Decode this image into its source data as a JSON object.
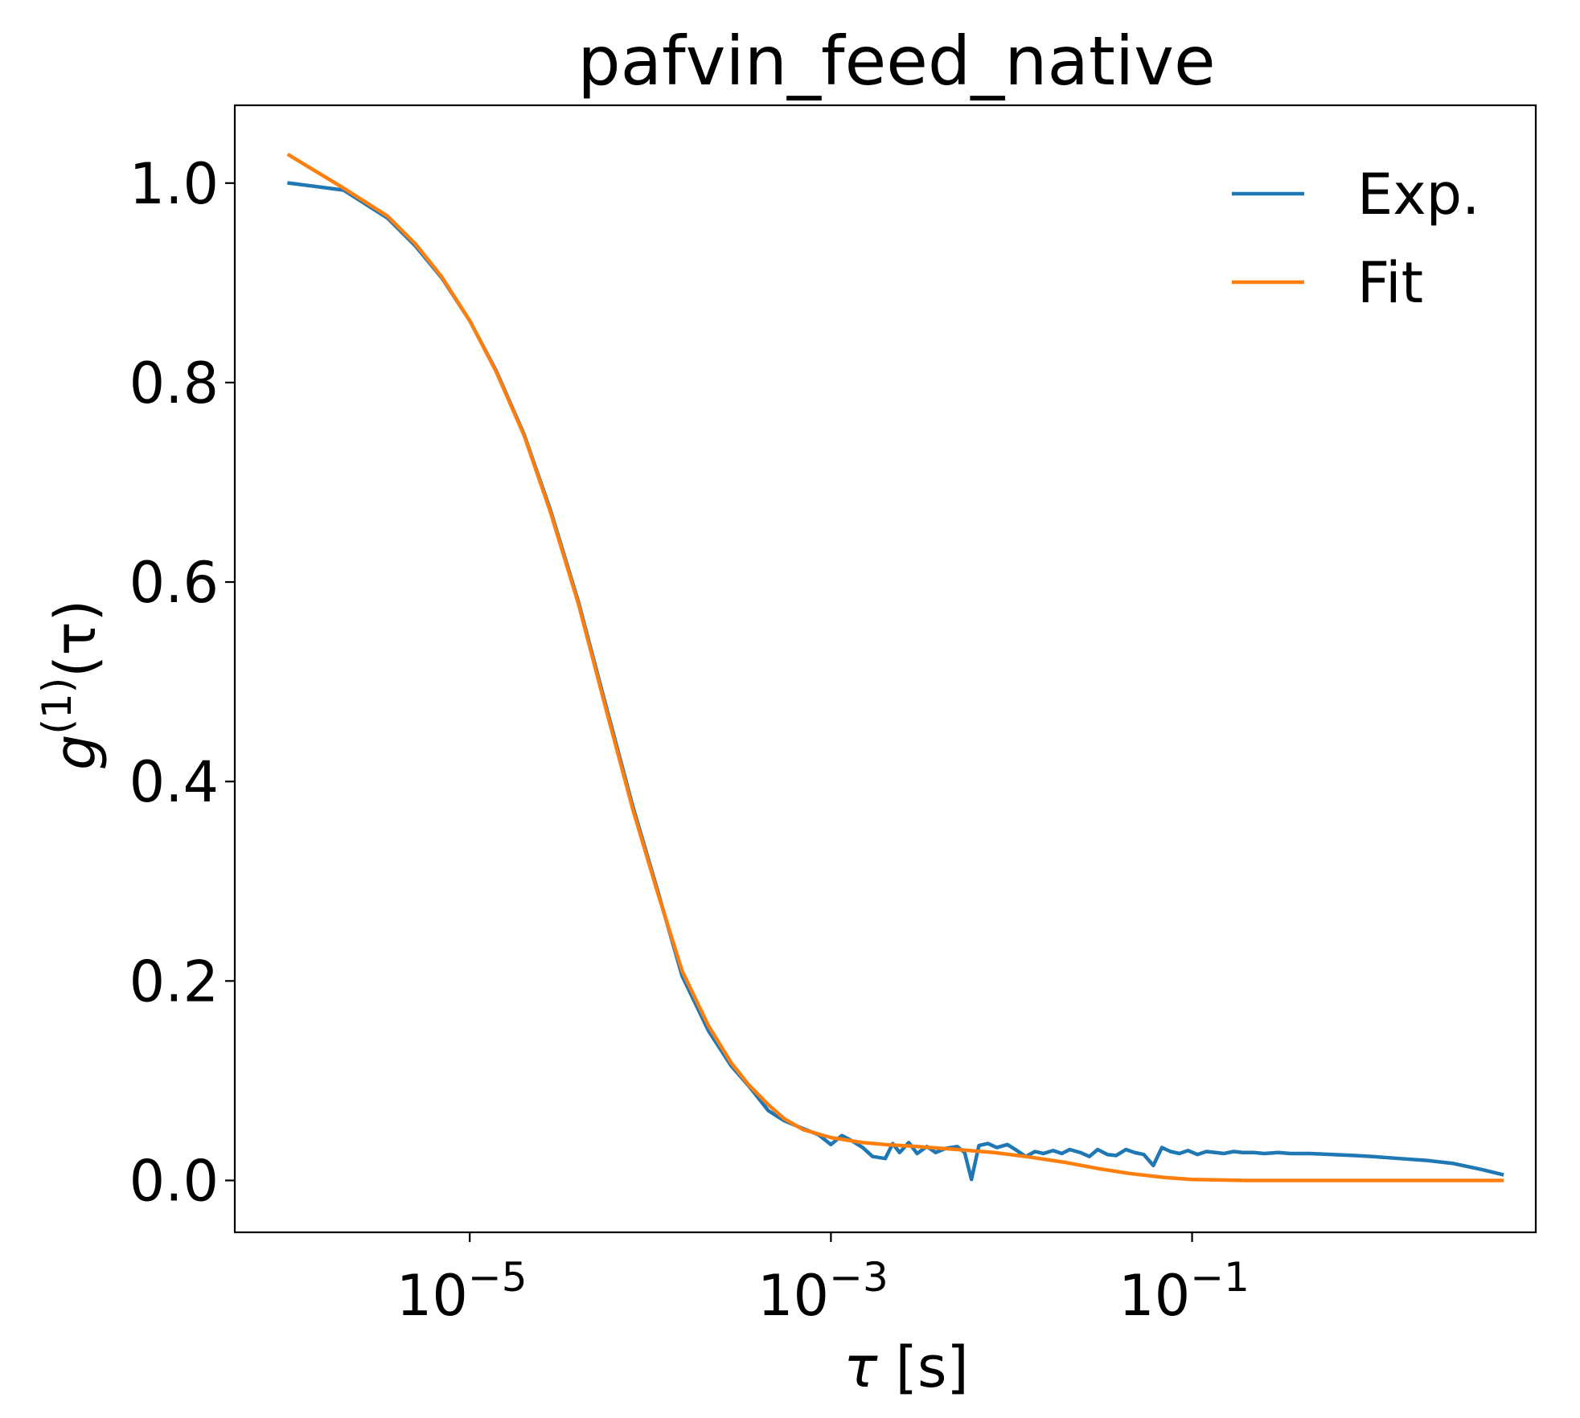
{
  "chart_data": {
    "type": "line",
    "title": "pafvin_feed_native",
    "xlabel": "τ [s]",
    "ylabel": "g(1)(τ)",
    "ylabel_parts": {
      "base": "g",
      "sup": "(1)",
      "arg": "(τ)"
    },
    "xlabel_parts": {
      "sym": "τ",
      "unit": " [s]"
    },
    "x_scale": "log",
    "xlim": [
      5e-07,
      8.0
    ],
    "ylim": [
      -0.052,
      1.078
    ],
    "x_ticks": [
      {
        "value": 1e-05,
        "base": "10",
        "exp": "−5"
      },
      {
        "value": 0.001,
        "base": "10",
        "exp": "−3"
      },
      {
        "value": 0.1,
        "base": "10",
        "exp": "−1"
      }
    ],
    "y_ticks": [
      {
        "value": 0.0,
        "label": "0.0"
      },
      {
        "value": 0.2,
        "label": "0.2"
      },
      {
        "value": 0.4,
        "label": "0.4"
      },
      {
        "value": 0.6,
        "label": "0.6"
      },
      {
        "value": 0.8,
        "label": "0.8"
      },
      {
        "value": 1.0,
        "label": "1.0"
      }
    ],
    "grid": false,
    "legend": {
      "placement": "upper right",
      "frame": false
    },
    "series": [
      {
        "name": "Exp.",
        "color": "#1f77b4",
        "points": [
          [
            1e-06,
            1.0
          ],
          [
            2e-06,
            0.993
          ],
          [
            3.5e-06,
            0.965
          ],
          [
            5e-06,
            0.937
          ],
          [
            7e-06,
            0.905
          ],
          [
            1e-05,
            0.862
          ],
          [
            1.4e-05,
            0.812
          ],
          [
            2e-05,
            0.748
          ],
          [
            2.8e-05,
            0.672
          ],
          [
            4e-05,
            0.58
          ],
          [
            5.6e-05,
            0.48
          ],
          [
            8e-05,
            0.375
          ],
          [
            0.00011,
            0.29
          ],
          [
            0.00015,
            0.205
          ],
          [
            0.00021,
            0.15
          ],
          [
            0.00028,
            0.115
          ],
          [
            0.00035,
            0.095
          ],
          [
            0.00045,
            0.07
          ],
          [
            0.00055,
            0.06
          ],
          [
            0.0007,
            0.052
          ],
          [
            0.00085,
            0.046
          ],
          [
            0.001,
            0.036
          ],
          [
            0.00115,
            0.045
          ],
          [
            0.0013,
            0.04
          ],
          [
            0.0015,
            0.033
          ],
          [
            0.0017,
            0.024
          ],
          [
            0.002,
            0.022
          ],
          [
            0.0022,
            0.037
          ],
          [
            0.0024,
            0.028
          ],
          [
            0.0027,
            0.038
          ],
          [
            0.003,
            0.027
          ],
          [
            0.0034,
            0.034
          ],
          [
            0.0038,
            0.028
          ],
          [
            0.0043,
            0.032
          ],
          [
            0.005,
            0.034
          ],
          [
            0.0055,
            0.028
          ],
          [
            0.006,
            0.001
          ],
          [
            0.0066,
            0.035
          ],
          [
            0.0074,
            0.037
          ],
          [
            0.0083,
            0.033
          ],
          [
            0.0095,
            0.036
          ],
          [
            0.0105,
            0.031
          ],
          [
            0.012,
            0.024
          ],
          [
            0.0135,
            0.029
          ],
          [
            0.015,
            0.027
          ],
          [
            0.017,
            0.03
          ],
          [
            0.019,
            0.027
          ],
          [
            0.021,
            0.031
          ],
          [
            0.024,
            0.028
          ],
          [
            0.027,
            0.024
          ],
          [
            0.03,
            0.031
          ],
          [
            0.034,
            0.026
          ],
          [
            0.038,
            0.025
          ],
          [
            0.043,
            0.031
          ],
          [
            0.048,
            0.028
          ],
          [
            0.054,
            0.026
          ],
          [
            0.061,
            0.015
          ],
          [
            0.068,
            0.033
          ],
          [
            0.076,
            0.029
          ],
          [
            0.085,
            0.027
          ],
          [
            0.095,
            0.03
          ],
          [
            0.107,
            0.026
          ],
          [
            0.12,
            0.029
          ],
          [
            0.135,
            0.028
          ],
          [
            0.15,
            0.027
          ],
          [
            0.17,
            0.029
          ],
          [
            0.19,
            0.028
          ],
          [
            0.22,
            0.028
          ],
          [
            0.25,
            0.027
          ],
          [
            0.3,
            0.028
          ],
          [
            0.35,
            0.027
          ],
          [
            0.45,
            0.027
          ],
          [
            0.6,
            0.026
          ],
          [
            0.8,
            0.025
          ],
          [
            1.0,
            0.024
          ],
          [
            1.4,
            0.022
          ],
          [
            2.0,
            0.02
          ],
          [
            2.8,
            0.017
          ],
          [
            4.0,
            0.011
          ],
          [
            5.2,
            0.006
          ]
        ]
      },
      {
        "name": "Fit",
        "color": "#ff7f0e",
        "points": [
          [
            1e-06,
            1.028
          ],
          [
            2e-06,
            0.995
          ],
          [
            3.5e-06,
            0.967
          ],
          [
            5e-06,
            0.939
          ],
          [
            7e-06,
            0.906
          ],
          [
            1e-05,
            0.862
          ],
          [
            1.4e-05,
            0.811
          ],
          [
            2e-05,
            0.747
          ],
          [
            2.8e-05,
            0.67
          ],
          [
            4e-05,
            0.578
          ],
          [
            5.6e-05,
            0.477
          ],
          [
            8e-05,
            0.372
          ],
          [
            0.00011,
            0.288
          ],
          [
            0.00015,
            0.21
          ],
          [
            0.00021,
            0.155
          ],
          [
            0.00028,
            0.118
          ],
          [
            0.00035,
            0.096
          ],
          [
            0.00045,
            0.076
          ],
          [
            0.00055,
            0.062
          ],
          [
            0.0007,
            0.051
          ],
          [
            0.001,
            0.043
          ],
          [
            0.0015,
            0.038
          ],
          [
            0.002,
            0.036
          ],
          [
            0.003,
            0.034
          ],
          [
            0.005,
            0.031
          ],
          [
            0.008,
            0.028
          ],
          [
            0.012,
            0.024
          ],
          [
            0.02,
            0.018
          ],
          [
            0.03,
            0.012
          ],
          [
            0.045,
            0.007
          ],
          [
            0.07,
            0.003
          ],
          [
            0.1,
            0.001
          ],
          [
            0.2,
            0.0
          ],
          [
            0.5,
            0.0
          ],
          [
            1.0,
            0.0
          ],
          [
            2.0,
            0.0
          ],
          [
            5.2,
            0.0
          ]
        ]
      }
    ]
  }
}
